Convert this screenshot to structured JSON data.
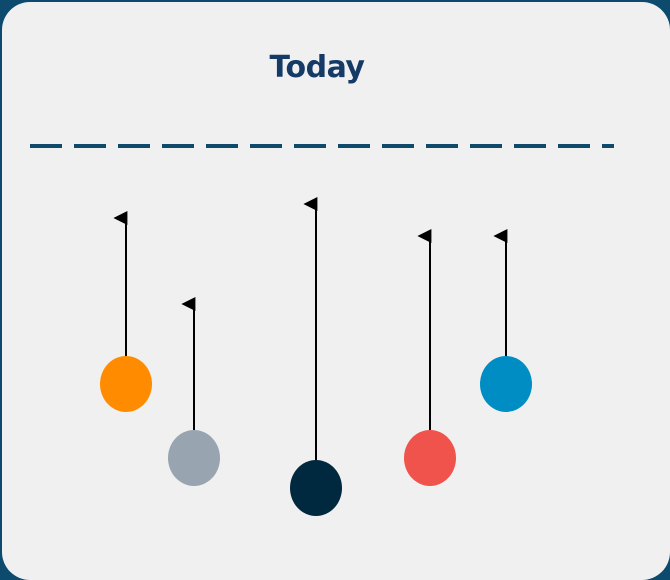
{
  "title": "Today",
  "colors": {
    "frame": "#0c4a6e",
    "card_background": "#f0f0f0",
    "title": "#163a66",
    "today_line": "#0f4a6b",
    "arrow": "#000000"
  },
  "items": [
    {
      "name": "orange",
      "color": "#ff8c00"
    },
    {
      "name": "grey",
      "color": "#98a4b0"
    },
    {
      "name": "navy",
      "color": "#00283e"
    },
    {
      "name": "red",
      "color": "#f0524c"
    },
    {
      "name": "blue",
      "color": "#008dc4"
    }
  ]
}
